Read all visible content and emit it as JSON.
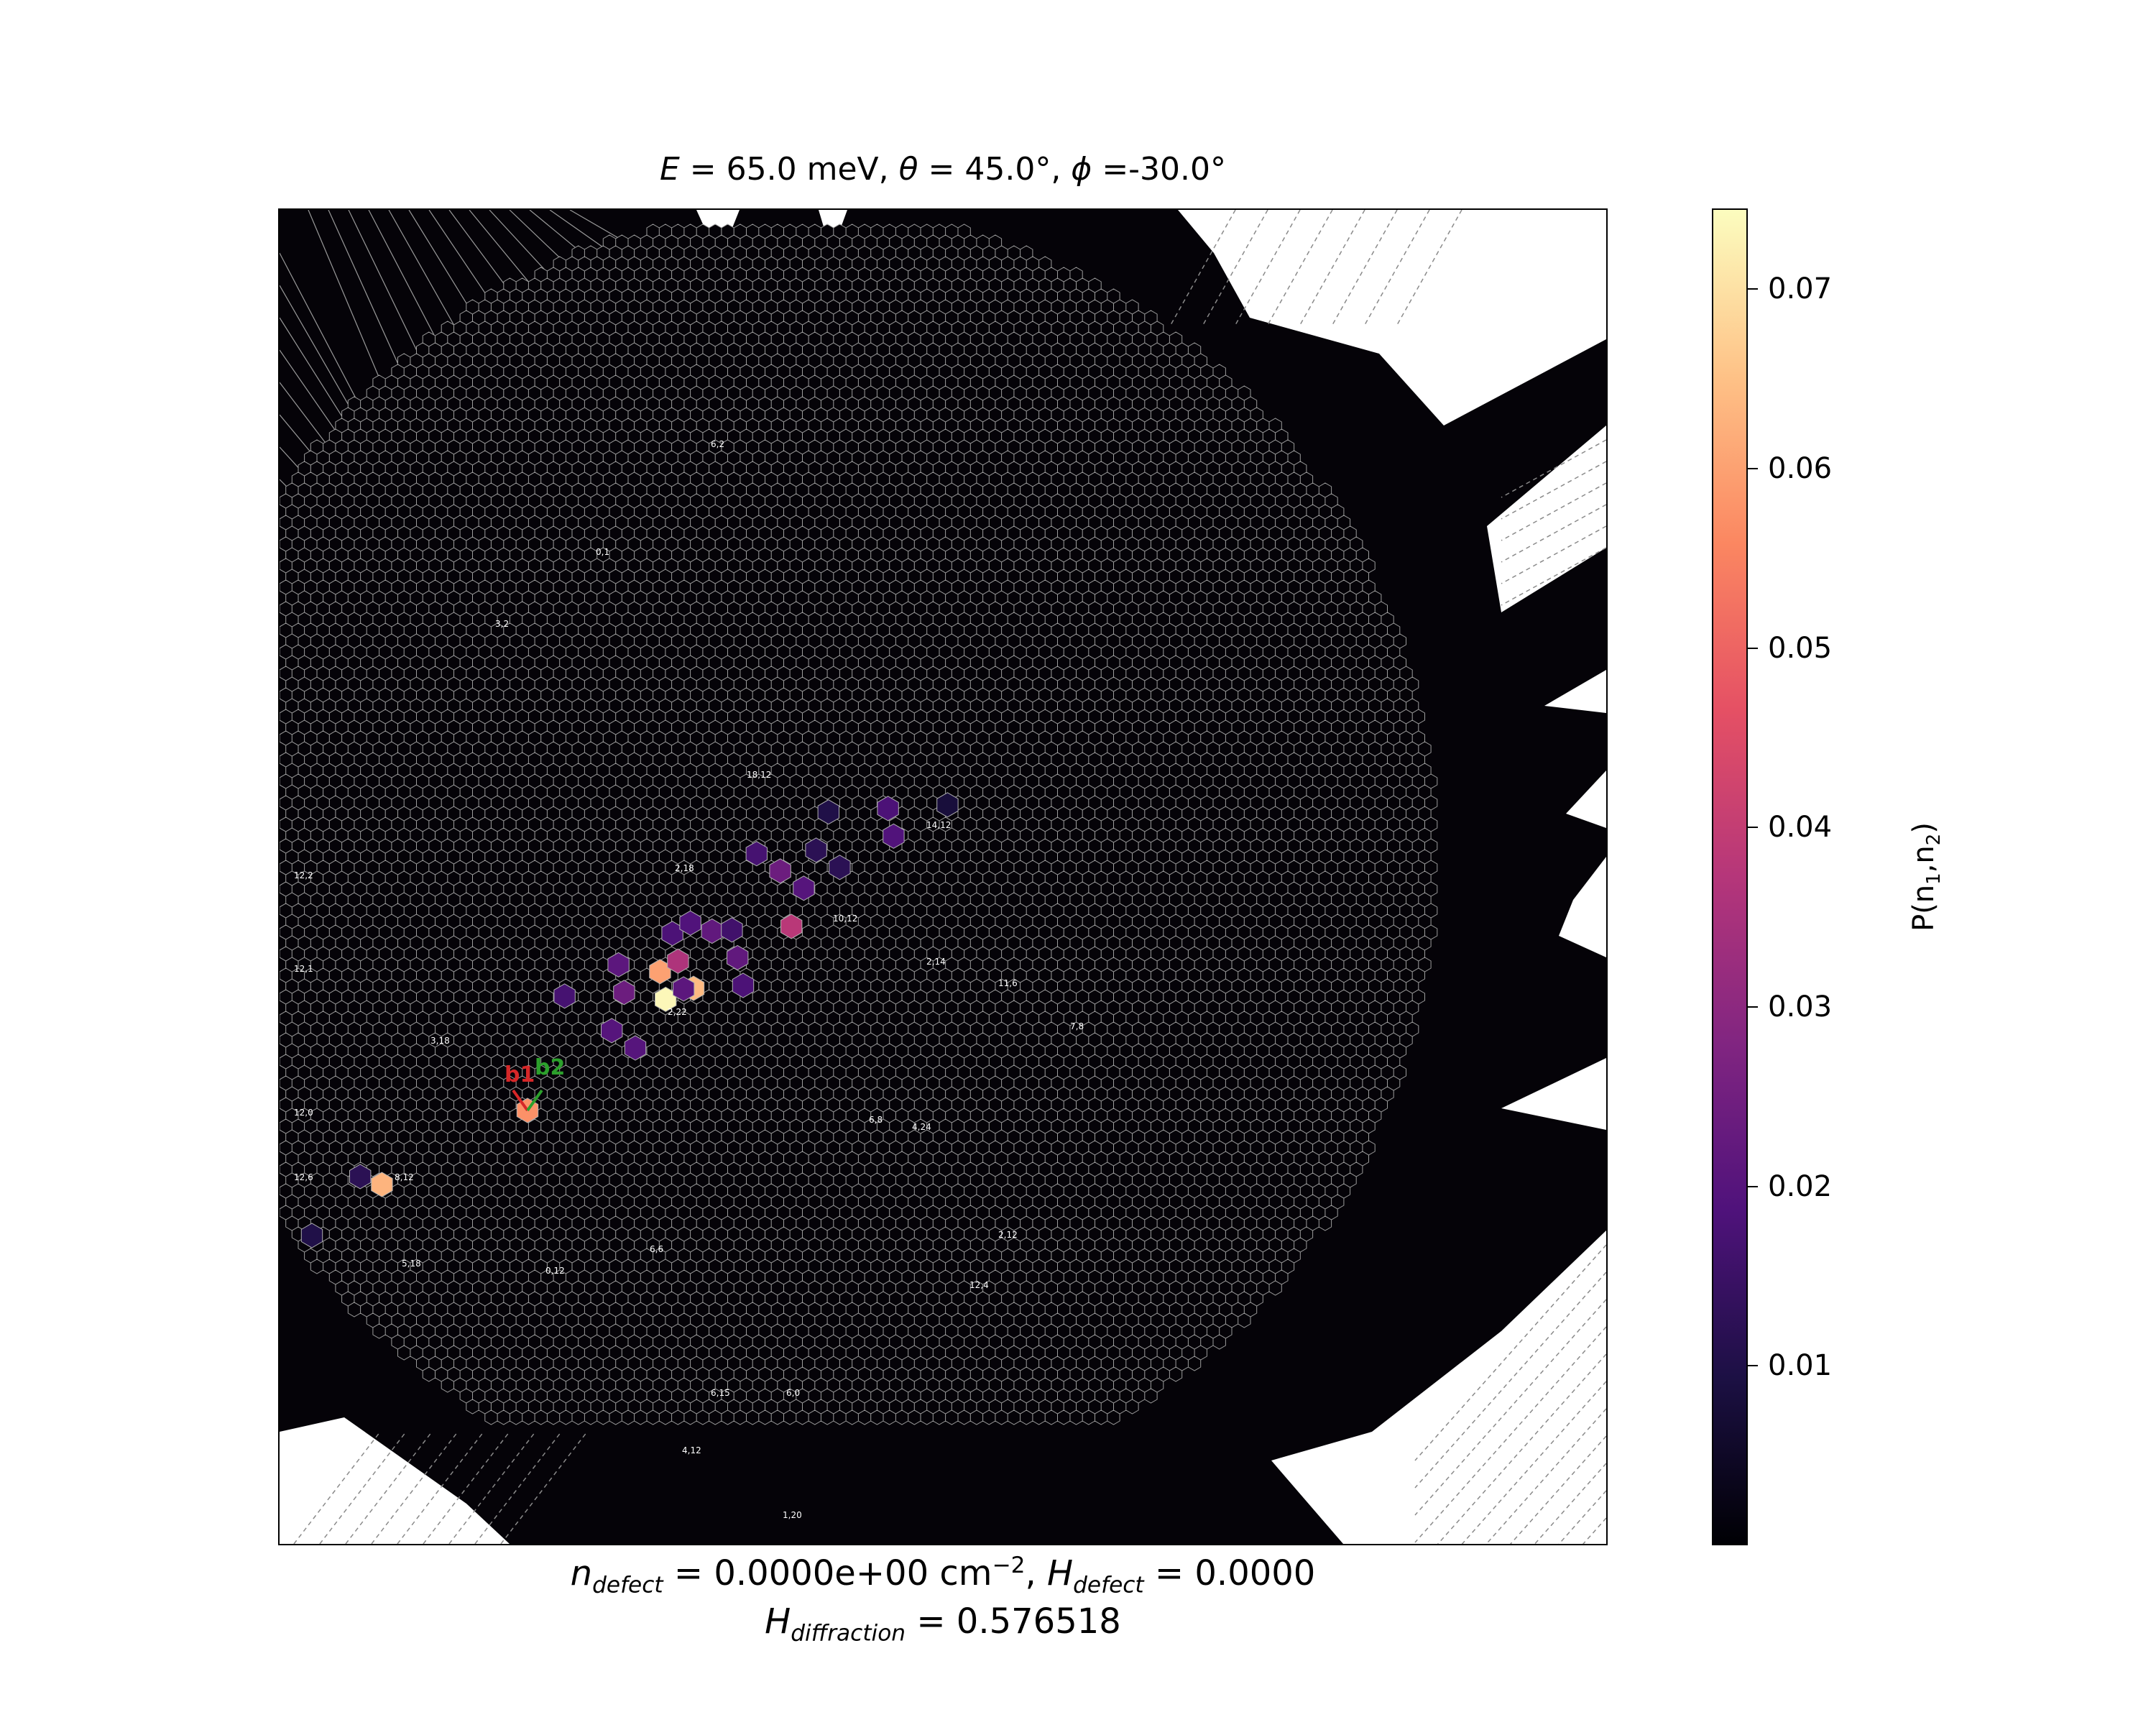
{
  "chart_data": {
    "type": "heatmap",
    "title": "E = 65.0 meV, θ = 45.0°, ϕ =-30.0°",
    "title_parts": {
      "e_sym": "E",
      "e_text": " = 65.0 meV, ",
      "theta_sym": "θ",
      "theta_text": " = 45.0°, ",
      "phi_sym": "ϕ",
      "phi_text": " =-30.0°"
    },
    "footer_line1": "n_defect = 0.0000e+00 cm^-2, H_defect = 0.0000",
    "footer_line1_parts": {
      "n_sym": "n",
      "n_sub": "defect",
      "n_val": " = 0.0000e+00 cm",
      "n_sup": "−2",
      "sep": ", ",
      "h_sym": "H",
      "h_sub": "defect",
      "h_val": " = 0.0000"
    },
    "footer_line2": "H_diffraction = 0.576518",
    "footer_line2_parts": {
      "h_sym": "H",
      "h_sub": "diffraction",
      "h_val": " = 0.576518"
    },
    "colorbar": {
      "label": "P(n1,n2)",
      "label_text": "P(n",
      "label_mid": ",n",
      "label_end": ")",
      "label_sub1": "1",
      "label_sub2": "2",
      "min": 0.0,
      "max": 0.0745,
      "ticks": [
        0.01,
        0.02,
        0.03,
        0.04,
        0.05,
        0.06,
        0.07
      ],
      "tick_labels": [
        "0.01",
        "0.02",
        "0.03",
        "0.04",
        "0.05",
        "0.06",
        "0.07"
      ],
      "colormap": "magma",
      "stops": [
        "#000004",
        "#1c1044",
        "#4f127b",
        "#812581",
        "#b5367a",
        "#e55064",
        "#fb8761",
        "#fec287",
        "#fcfdbf"
      ]
    },
    "basis_vector_labels": [
      "b1",
      "b2"
    ],
    "basis_colors": {
      "b1": "#d62728",
      "b2": "#2ca02c"
    },
    "cell_labels_visible": [
      "12,2",
      "12,1",
      "12,6",
      "12,0",
      "8,12",
      "5,18",
      "2,18",
      "2,22",
      "3,18",
      "6,6",
      "0,12",
      "6,15",
      "4,12",
      "6,0",
      "1,20",
      "6,8",
      "4,24",
      "2,12",
      "12,4",
      "2,14",
      "0,1",
      "3,2",
      "6,2",
      "10,12",
      "18,12",
      "14,12",
      "11,6",
      "7,8"
    ],
    "highlighted_peaks": [
      {
        "n1": 0,
        "n2": 0,
        "p": 0.0575
      },
      {
        "n1": 7,
        "n2": 5,
        "p": 0.064
      },
      {
        "n1": 5,
        "n2": 6,
        "p": 0.0735
      },
      {
        "n1": -9,
        "n2": 2,
        "p": 0.063
      },
      {
        "n1": 2,
        "n2": 12,
        "p": 0.06
      },
      {
        "n1": 12,
        "n2": 6,
        "p": 0.038
      },
      {
        "n1": 3,
        "n2": 12,
        "p": 0.036
      },
      {
        "n1": -3,
        "n2": 18,
        "p": 0.021
      },
      {
        "n1": 0,
        "n2": 12,
        "p": 0.024
      },
      {
        "n1": 0,
        "n2": 18,
        "p": 0.018
      },
      {
        "n1": 2,
        "n2": 6,
        "p": 0.02
      },
      {
        "n1": 6,
        "n2": 6,
        "p": 0.021
      },
      {
        "n1": 4,
        "n2": 14,
        "p": 0.022
      },
      {
        "n1": 6,
        "n2": 0,
        "p": 0.02
      },
      {
        "n1": 9,
        "n2": 6,
        "p": 0.022
      },
      {
        "n1": 12,
        "n2": 0,
        "p": 0.018
      },
      {
        "n1": 10,
        "n2": 12,
        "p": 0.02
      },
      {
        "n1": 15,
        "n2": 12,
        "p": 0.019
      },
      {
        "n1": 12,
        "n2": 18,
        "p": 0.018
      },
      {
        "n1": 1,
        "n2": 18,
        "p": 0.019
      },
      {
        "n1": -6,
        "n2": 18,
        "p": 0.017
      },
      {
        "n1": 6,
        "n2": 18,
        "p": 0.024
      },
      {
        "n1": 2,
        "n2": 24,
        "p": 0.017
      },
      {
        "n1": 6,
        "n2": 12,
        "p": 0.016
      },
      {
        "n1": 8,
        "n2": 18,
        "p": 0.012
      },
      {
        "n1": -12,
        "n2": 6,
        "p": 0.012
      },
      {
        "n1": -12,
        "n2": 0,
        "p": 0.01
      },
      {
        "n1": 12,
        "n2": 12,
        "p": 0.012
      },
      {
        "n1": 18,
        "n2": 12,
        "p": 0.008
      },
      {
        "n1": 6,
        "n2": 24,
        "p": 0.01
      }
    ],
    "grid": "hexagonal Voronoi cells with white outlines",
    "background": "black"
  }
}
